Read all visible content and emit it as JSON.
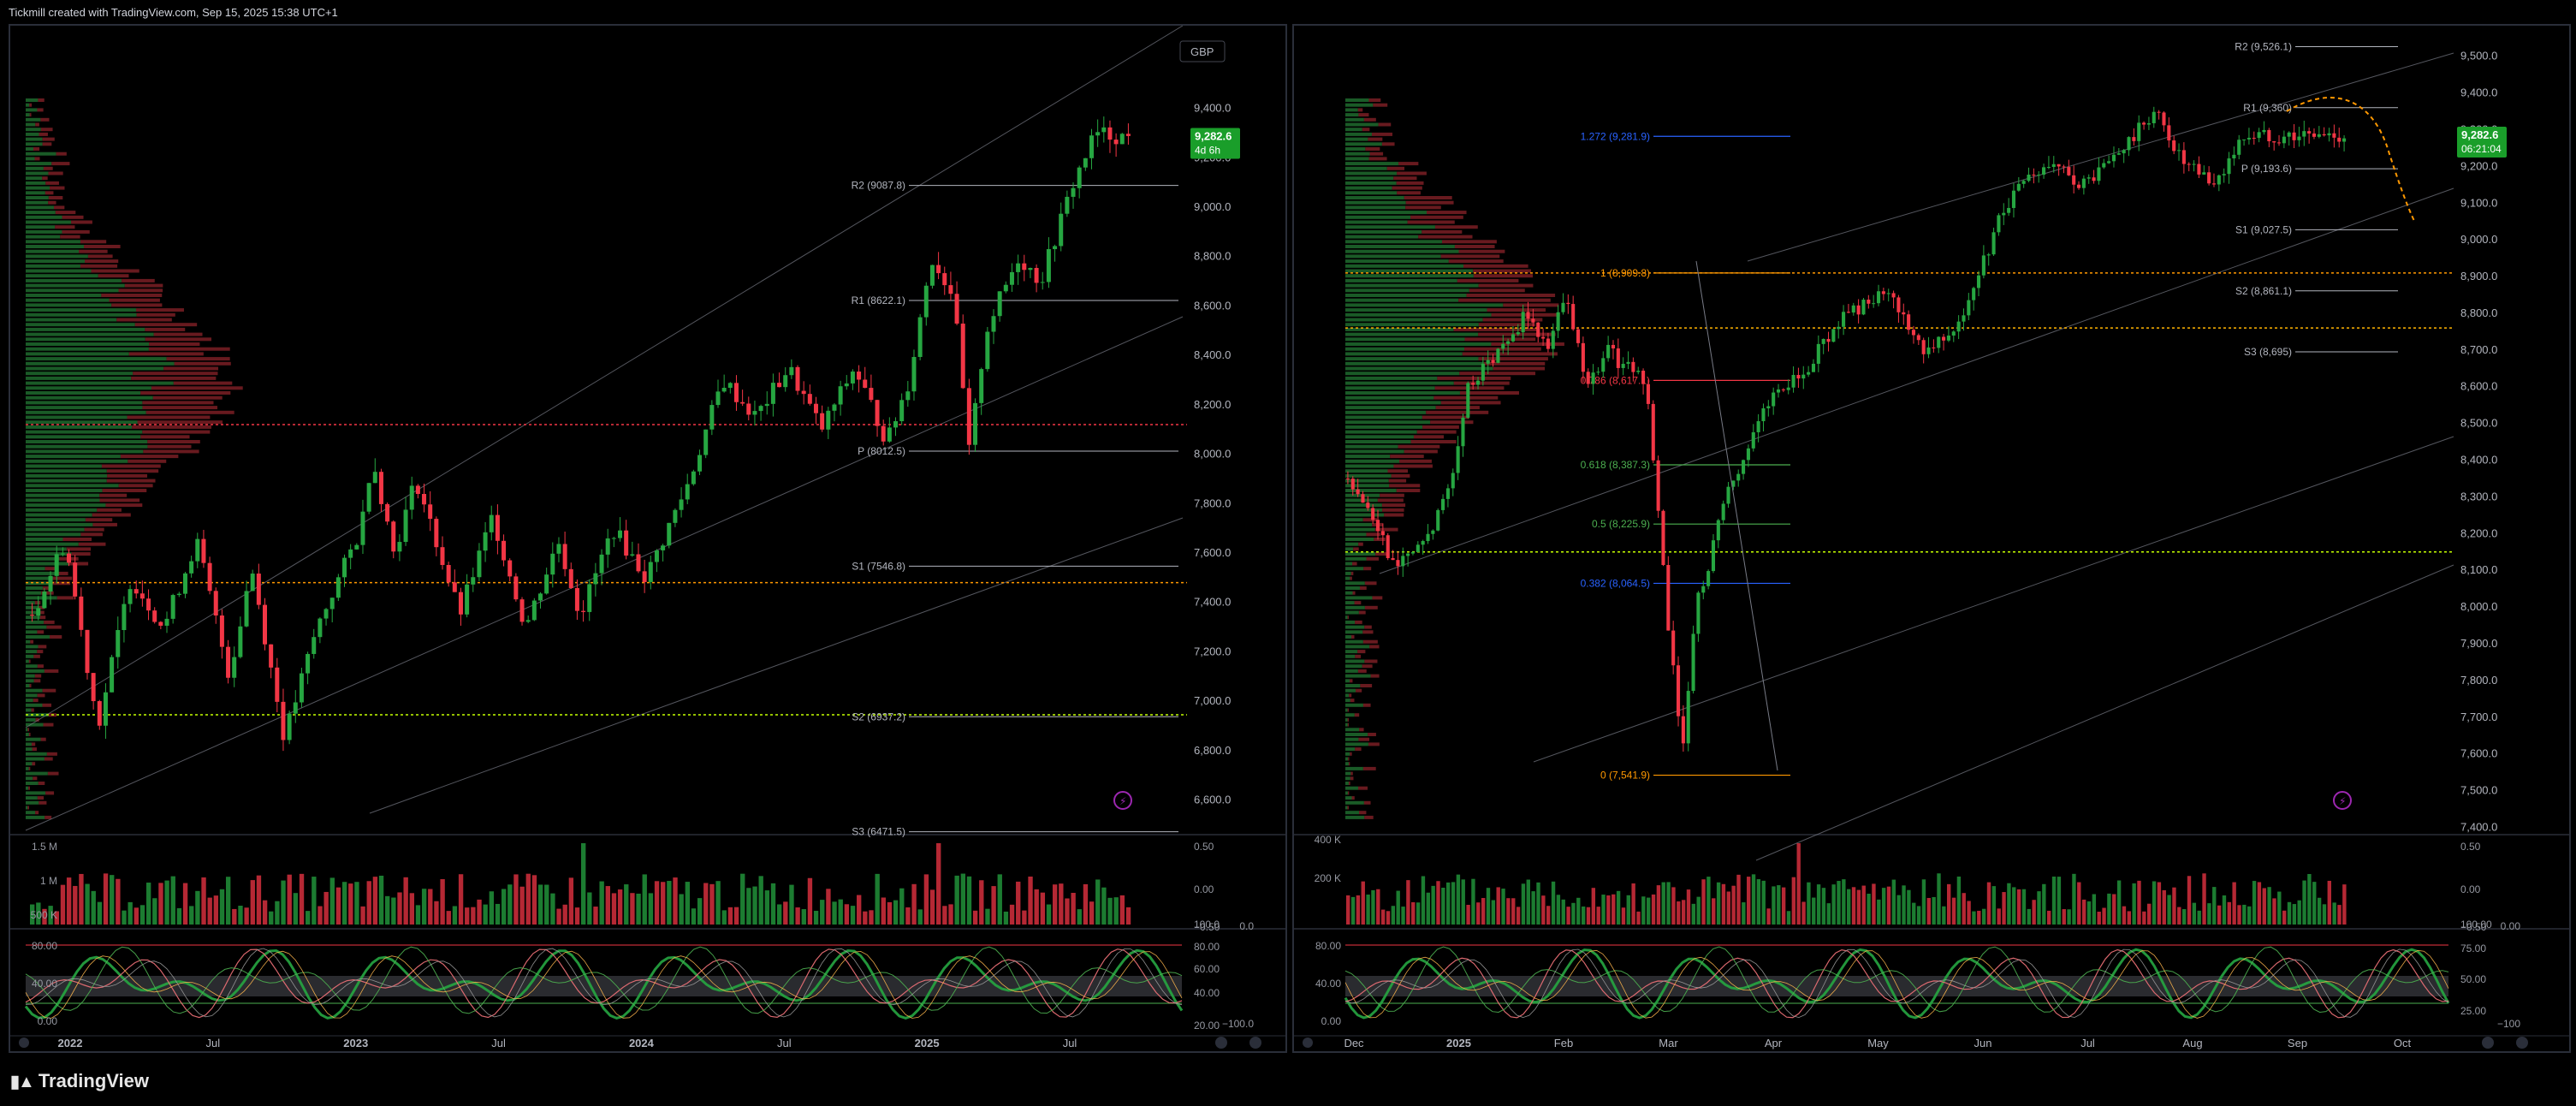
{
  "header": {
    "title": "Tickmill created with TradingView.com, Sep 15, 2025 15:38 UTC+1"
  },
  "footer": {
    "brand": "TradingView"
  },
  "colors": {
    "up": "#26a641",
    "down": "#f23645",
    "pivot_line": "#b2b5be",
    "volume_profile_up": "#1f6b2e",
    "volume_profile_down": "#7a1f25",
    "price_tag": "#1a9e2a",
    "orange": "#ff9800",
    "blue": "#2962ff",
    "green_fib": "#4caf50"
  },
  "chart_data": [
    {
      "type": "line",
      "panel": "left",
      "currency_label": "GBP",
      "price_axis": [
        "9,400.0",
        "9,200.0",
        "9,000.0",
        "8,800.0",
        "8,600.0",
        "8,400.0",
        "8,200.0",
        "8,000.0",
        "7,800.0",
        "7,600.0",
        "7,400.0",
        "7,200.0",
        "7,000.0",
        "6,800.0",
        "6,600.0"
      ],
      "ylim": [
        6460,
        9700
      ],
      "time_axis": [
        "2022",
        "Jul",
        "2023",
        "Jul",
        "2024",
        "Jul",
        "2025",
        "Jul"
      ],
      "last_price": "9,282.6",
      "last_price_sub": "4d 6h",
      "pivots": [
        {
          "label": "R2 (9087.8)",
          "value": 9087.8
        },
        {
          "label": "R1 (8622.1)",
          "value": 8622.1
        },
        {
          "label": "P (8012.5)",
          "value": 8012.5
        },
        {
          "label": "S1 (7546.8)",
          "value": 7546.8
        },
        {
          "label": "S2 (6937.2)",
          "value": 6937.2
        },
        {
          "label": "S3 (6471.5)",
          "value": 6471.5
        }
      ],
      "key_points": [
        {
          "t": 0.0,
          "p": 7350
        },
        {
          "t": 0.03,
          "p": 7650
        },
        {
          "t": 0.06,
          "p": 6900
        },
        {
          "t": 0.09,
          "p": 7500
        },
        {
          "t": 0.12,
          "p": 7300
        },
        {
          "t": 0.15,
          "p": 7650
        },
        {
          "t": 0.18,
          "p": 7100
        },
        {
          "t": 0.2,
          "p": 7550
        },
        {
          "t": 0.23,
          "p": 6850
        },
        {
          "t": 0.26,
          "p": 7300
        },
        {
          "t": 0.3,
          "p": 7700
        },
        {
          "t": 0.31,
          "p": 8000
        },
        {
          "t": 0.33,
          "p": 7600
        },
        {
          "t": 0.35,
          "p": 7900
        },
        {
          "t": 0.39,
          "p": 7350
        },
        {
          "t": 0.42,
          "p": 7750
        },
        {
          "t": 0.45,
          "p": 7300
        },
        {
          "t": 0.48,
          "p": 7650
        },
        {
          "t": 0.5,
          "p": 7350
        },
        {
          "t": 0.53,
          "p": 7700
        },
        {
          "t": 0.56,
          "p": 7500
        },
        {
          "t": 0.6,
          "p": 7900
        },
        {
          "t": 0.63,
          "p": 8300
        },
        {
          "t": 0.66,
          "p": 8150
        },
        {
          "t": 0.69,
          "p": 8350
        },
        {
          "t": 0.72,
          "p": 8100
        },
        {
          "t": 0.75,
          "p": 8350
        },
        {
          "t": 0.78,
          "p": 8050
        },
        {
          "t": 0.8,
          "p": 8300
        },
        {
          "t": 0.82,
          "p": 8800
        },
        {
          "t": 0.84,
          "p": 8650
        },
        {
          "t": 0.855,
          "p": 8000
        },
        {
          "t": 0.87,
          "p": 8500
        },
        {
          "t": 0.9,
          "p": 8800
        },
        {
          "t": 0.92,
          "p": 8700
        },
        {
          "t": 0.95,
          "p": 9100
        },
        {
          "t": 0.97,
          "p": 9300
        },
        {
          "t": 1.0,
          "p": 9282.6
        }
      ],
      "volume_axis": [
        "1.5 M",
        "1 M",
        "500 K"
      ],
      "volume_right_axis": [
        "0.50",
        "0.00",
        "−0.50"
      ],
      "oscillator_axis_left": [
        "80.00",
        "40.00",
        "0.00"
      ],
      "oscillator_axis_right": [
        "100.0",
        "80.00",
        "60.00",
        "40.00",
        "20.00"
      ],
      "oscillator_axis_right2": [
        "0.0",
        "−100.0"
      ]
    },
    {
      "type": "line",
      "panel": "right",
      "price_axis": [
        "9,500.0",
        "9,400.0",
        "9,300.0",
        "9,200.0",
        "9,100.0",
        "9,000.0",
        "8,900.0",
        "8,800.0",
        "8,700.0",
        "8,600.0",
        "8,500.0",
        "8,400.0",
        "8,300.0",
        "8,200.0",
        "8,100.0",
        "8,000.0",
        "7,900.0",
        "7,800.0",
        "7,700.0",
        "7,600.0",
        "7,500.0",
        "7,400.0"
      ],
      "ylim": [
        7380,
        9560
      ],
      "time_axis": [
        "Dec",
        "2025",
        "Feb",
        "Mar",
        "Apr",
        "May",
        "Jun",
        "Jul",
        "Aug",
        "Sep",
        "Oct"
      ],
      "last_price": "9,282.6",
      "last_price_sub": "06:21:04",
      "pivots": [
        {
          "label": "R2 (9,526.1)",
          "value": 9526.1
        },
        {
          "label": "R1 (9,360)",
          "value": 9360
        },
        {
          "label": "P (9,193.6)",
          "value": 9193.6
        },
        {
          "label": "S1 (9,027.5)",
          "value": 9027.5
        },
        {
          "label": "S2 (8,861.1)",
          "value": 8861.1
        },
        {
          "label": "S3 (8,695)",
          "value": 8695
        }
      ],
      "fib_levels": [
        {
          "label": "1.272 (9,281.9)",
          "value": 9281.9,
          "color": "#2962ff"
        },
        {
          "label": "1 (8,909.8)",
          "value": 8909.8,
          "color": "#ff9800"
        },
        {
          "label": "0.786 (8,617.1)",
          "value": 8617.1,
          "color": "#f23645"
        },
        {
          "label": "0.618 (8,387.3)",
          "value": 8387.3,
          "color": "#4caf50"
        },
        {
          "label": "0.5 (8,225.9)",
          "value": 8225.9,
          "color": "#4caf50"
        },
        {
          "label": "0.382 (8,064.5)",
          "value": 8064.5,
          "color": "#2962ff"
        },
        {
          "label": "0 (7,541.9)",
          "value": 7541.9,
          "color": "#ff9800"
        }
      ],
      "key_points": [
        {
          "t": 0.0,
          "p": 8350
        },
        {
          "t": 0.03,
          "p": 8200
        },
        {
          "t": 0.05,
          "p": 8100
        },
        {
          "t": 0.08,
          "p": 8200
        },
        {
          "t": 0.1,
          "p": 8300
        },
        {
          "t": 0.12,
          "p": 8600
        },
        {
          "t": 0.15,
          "p": 8700
        },
        {
          "t": 0.18,
          "p": 8800
        },
        {
          "t": 0.2,
          "p": 8700
        },
        {
          "t": 0.22,
          "p": 8850
        },
        {
          "t": 0.24,
          "p": 8600
        },
        {
          "t": 0.26,
          "p": 8700
        },
        {
          "t": 0.28,
          "p": 8650
        },
        {
          "t": 0.3,
          "p": 8600
        },
        {
          "t": 0.32,
          "p": 8000
        },
        {
          "t": 0.335,
          "p": 7600
        },
        {
          "t": 0.35,
          "p": 8000
        },
        {
          "t": 0.38,
          "p": 8300
        },
        {
          "t": 0.42,
          "p": 8550
        },
        {
          "t": 0.46,
          "p": 8650
        },
        {
          "t": 0.5,
          "p": 8800
        },
        {
          "t": 0.54,
          "p": 8850
        },
        {
          "t": 0.58,
          "p": 8700
        },
        {
          "t": 0.62,
          "p": 8800
        },
        {
          "t": 0.66,
          "p": 9100
        },
        {
          "t": 0.7,
          "p": 9200
        },
        {
          "t": 0.74,
          "p": 9150
        },
        {
          "t": 0.78,
          "p": 9250
        },
        {
          "t": 0.81,
          "p": 9350
        },
        {
          "t": 0.84,
          "p": 9200
        },
        {
          "t": 0.87,
          "p": 9150
        },
        {
          "t": 0.9,
          "p": 9282.6
        }
      ],
      "volume_axis": [
        "400 K",
        "200 K"
      ],
      "volume_right_axis": [
        "0.50",
        "0.00",
        "−0.50"
      ],
      "oscillator_axis_left": [
        "80.00",
        "40.00",
        "0.00"
      ],
      "oscillator_axis_right": [
        "100.00",
        "75.00",
        "50.00",
        "25.00"
      ],
      "oscillator_axis_right2": [
        "0.00",
        "−100"
      ]
    }
  ]
}
